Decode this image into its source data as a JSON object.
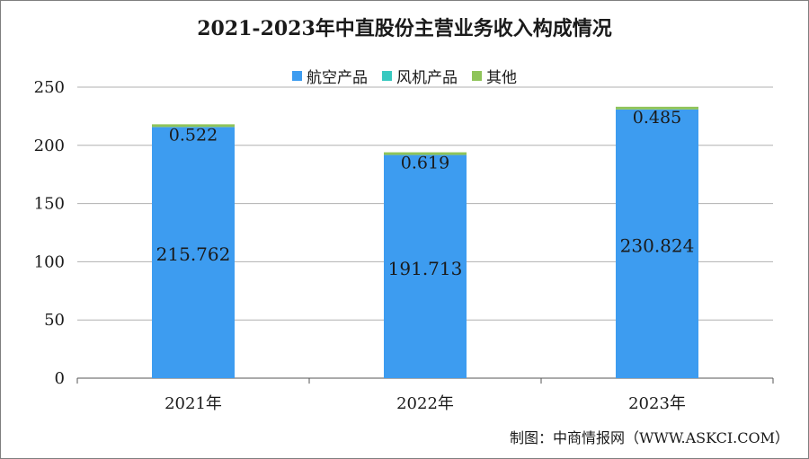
{
  "chart_data": {
    "type": "bar",
    "stacked": true,
    "title": "2021-2023年中直股份主营业务收入构成情况",
    "categories": [
      "2021年",
      "2022年",
      "2023年"
    ],
    "series": [
      {
        "name": "航空产品",
        "color": "#3d9cf0",
        "values": [
          215.762,
          191.713,
          230.824
        ]
      },
      {
        "name": "风机产品",
        "color": "#38c9c0",
        "values": [
          0,
          0,
          0
        ]
      },
      {
        "name": "其他",
        "color": "#8fc45a",
        "values": [
          0.522,
          0.619,
          0.485
        ]
      }
    ],
    "ylim": [
      0,
      250
    ],
    "yticks": [
      "0",
      "50",
      "100",
      "150",
      "200",
      "250"
    ],
    "grid": true,
    "legend_position": "top"
  },
  "source_note": "制图：中商情报网（WWW.ASKCI.COM）"
}
